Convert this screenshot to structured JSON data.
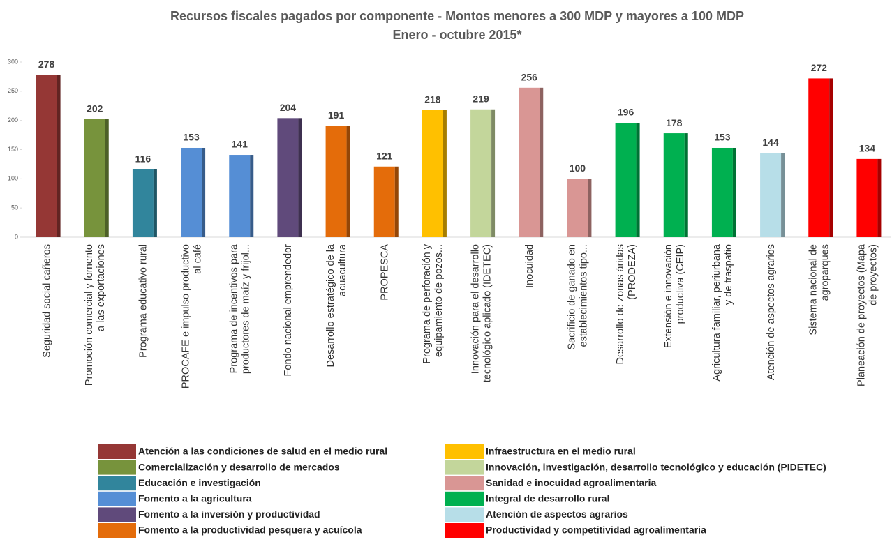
{
  "chart_data": {
    "type": "bar",
    "title": "Recursos fiscales pagados por componente - Montos menores a 300 MDP y mayores a 100 MDP",
    "subtitle": "Enero - octubre 2015*",
    "categories": [
      [
        "Seguridad social cañeros"
      ],
      [
        "Promoción comercial y fomento",
        "a las exportaciones"
      ],
      [
        "Programa educativo rural"
      ],
      [
        "PROCAFE e impulso productivo",
        "al café"
      ],
      [
        "Programa de incentivos para",
        "productores de maíz y frijol..."
      ],
      [
        "Fondo nacional emprendedor"
      ],
      [
        "Desarrollo estratégico de la",
        "acuacultura"
      ],
      [
        "PROPESCA"
      ],
      [
        "Programa de perforación y",
        "equipamiento de pozos..."
      ],
      [
        "Innovación para el desarrollo",
        "tecnológico aplicado (IDETEC)"
      ],
      [
        "Inocuidad"
      ],
      [
        "Sacrificio de ganado en",
        "establecimientos tipo..."
      ],
      [
        "Desarrollo de zonas áridas",
        "(PRODEZA)"
      ],
      [
        "Extensión e innovación",
        "productiva (CEIP)"
      ],
      [
        "Agricultura familiar, periurbana",
        "y de traspatio"
      ],
      [
        "Atención de aspectos agrarios"
      ],
      [
        "Sistema nacional de",
        "agroparques"
      ],
      [
        "Planeación de proyectos (Mapa",
        "de proyectos)"
      ]
    ],
    "values": [
      278,
      202,
      116,
      153,
      141,
      204,
      191,
      121,
      218,
      219,
      256,
      100,
      196,
      178,
      153,
      144,
      272,
      134
    ],
    "colors": [
      "#953735",
      "#77933c",
      "#31859c",
      "#558ed5",
      "#558ed5",
      "#604a7b",
      "#e46c0a",
      "#e46c0a",
      "#ffc000",
      "#c3d69b",
      "#d99694",
      "#d99694",
      "#00b050",
      "#00b050",
      "#00b050",
      "#b7dee8",
      "#ff0000",
      "#ff0000"
    ],
    "ylim": [
      0,
      300
    ],
    "yticks": [
      0,
      50,
      100,
      150,
      200,
      250,
      300
    ],
    "grid": false,
    "legend_position": "bottom",
    "legend": [
      {
        "name": "Atención a las condiciones de salud en el medio rural",
        "color": "#953735"
      },
      {
        "name": "Comercialización y desarrollo de mercados",
        "color": "#77933c"
      },
      {
        "name": "Educación e investigación",
        "color": "#31859c"
      },
      {
        "name": "Fomento a la agricultura",
        "color": "#558ed5"
      },
      {
        "name": "Fomento a la inversión y productividad",
        "color": "#604a7b"
      },
      {
        "name": "Fomento a la productividad pesquera y acuícola",
        "color": "#e46c0a"
      },
      {
        "name": "Infraestructura en el medio rural",
        "color": "#ffc000"
      },
      {
        "name": "Innovación, investigación, desarrollo tecnológico y educación (PIDETEC)",
        "color": "#c3d69b"
      },
      {
        "name": "Sanidad e inocuidad agroalimentaria",
        "color": "#d99694"
      },
      {
        "name": "Integral de desarrollo rural",
        "color": "#00b050"
      },
      {
        "name": "Atención de aspectos agrarios",
        "color": "#b7dee8"
      },
      {
        "name": "Productividad y competitividad agroalimentaria",
        "color": "#ff0000"
      }
    ]
  }
}
